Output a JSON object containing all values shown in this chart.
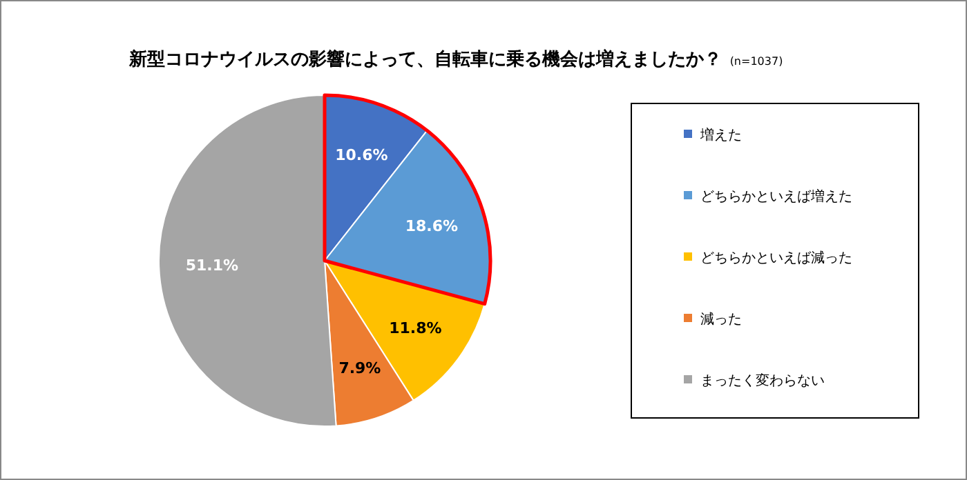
{
  "chart_data": {
    "type": "pie",
    "title": "新型コロナウイルスの影響によって、自転車に乗る機会は増えましたか？",
    "subtitle": "(n=1037)",
    "categories": [
      "増えた",
      "どちらかといえば増えた",
      "どちらかといえば減った",
      "減った",
      "まったく変わらない"
    ],
    "values": [
      10.6,
      18.6,
      11.8,
      7.9,
      51.1
    ],
    "colors": [
      "#4472c4",
      "#5b9bd5",
      "#ffc000",
      "#ed7d31",
      "#a5a5a5"
    ],
    "value_labels": [
      "10.6%",
      "18.6%",
      "11.8%",
      "7.9%",
      "51.1%"
    ],
    "legend": "right"
  }
}
